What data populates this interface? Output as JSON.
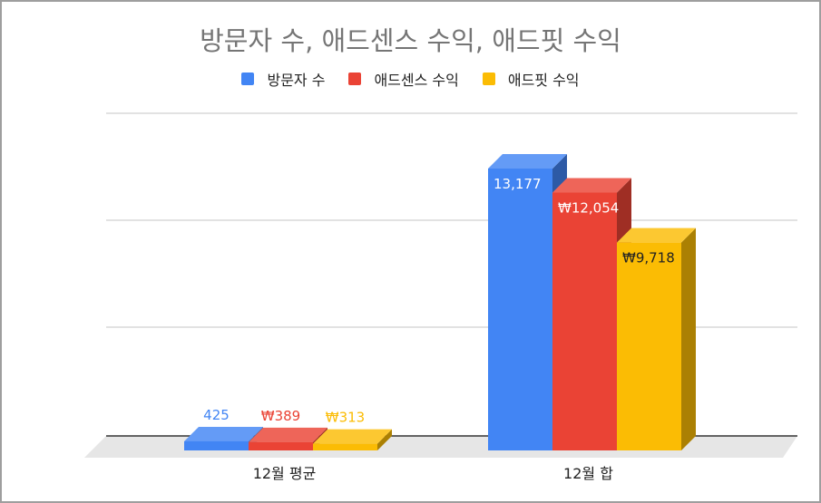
{
  "chart_data": {
    "type": "bar",
    "title": "방문자 수, 애드센스 수익, 애드핏 수익",
    "categories": [
      "12월 평균",
      "12월 합"
    ],
    "series": [
      {
        "name": "방문자 수",
        "values": [
          425,
          13177
        ],
        "labels": [
          "425",
          "13,177"
        ],
        "color": "#4285f4"
      },
      {
        "name": "애드센스 수익",
        "values": [
          389,
          12054
        ],
        "labels": [
          "₩389",
          "₩12,054"
        ],
        "color": "#ea4335"
      },
      {
        "name": "애드핏 수익",
        "values": [
          313,
          9718
        ],
        "labels": [
          "₩313",
          "₩9,718"
        ],
        "color": "#fbbc04"
      }
    ],
    "ylim": [
      0,
      15000
    ],
    "grid": true,
    "legend_position": "top",
    "style": "3d"
  }
}
